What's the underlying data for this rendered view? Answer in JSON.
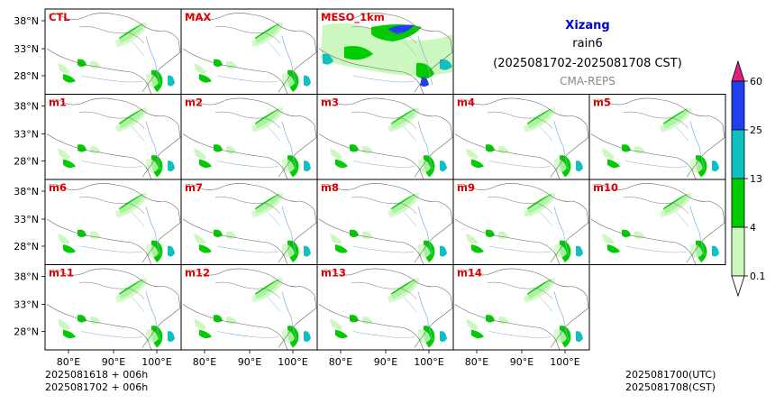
{
  "title": {
    "region": "Xizang",
    "variable": "rain6",
    "period": "(2025081702-2025081708 CST)",
    "source": "CMA-REPS"
  },
  "panels": [
    [
      "CTL",
      "MAX",
      "MESO_1km"
    ],
    [
      "m1",
      "m2",
      "m3",
      "m4",
      "m5"
    ],
    [
      "m6",
      "m7",
      "m8",
      "m9",
      "m10"
    ],
    [
      "m11",
      "m12",
      "m13",
      "m14"
    ]
  ],
  "lat_ticks": [
    "38°N",
    "33°N",
    "28°N"
  ],
  "lon_ticks": [
    "80°E",
    "90°E",
    "100°E"
  ],
  "colorbar": {
    "ticks": [
      "60",
      "25",
      "13",
      "4",
      "0.1"
    ],
    "colors": [
      "#e0207a",
      "#2040f0",
      "#10c0c0",
      "#00cc00",
      "#ccf8c0",
      "#ffffff"
    ]
  },
  "footer": {
    "left": [
      "2025081618  +  006h",
      "2025081702  +  006h"
    ],
    "right": [
      "2025081700(UTC)",
      "2025081708(CST)"
    ]
  }
}
